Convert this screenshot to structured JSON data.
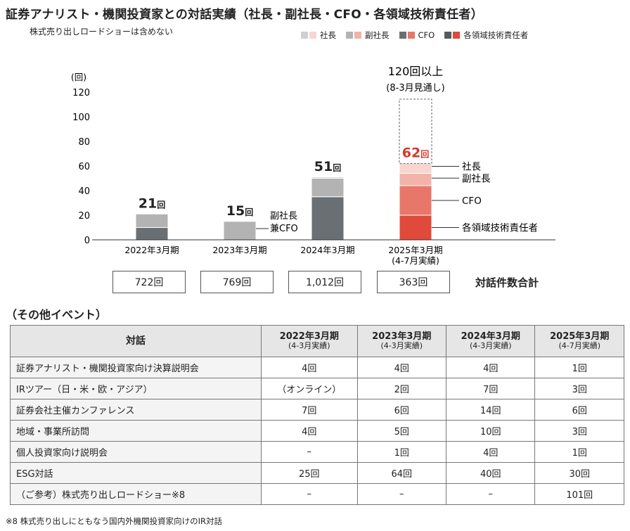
{
  "title": "証券アナリスト・機関投資家との対話実績（社長・副社長・CFO・各領域技術責任者）",
  "subtitle": "株式売り出しロードショーは含めない",
  "colors": {
    "president": "#cfcfcf",
    "vice_president": "#b3b3b3",
    "cfo": "#6a6f73",
    "tech": "#565b5f",
    "president_2025": "#f8d6cf",
    "vice_president_2025": "#f2b3a8",
    "cfo_2025": "#e8776a",
    "tech_2025": "#df4a3b",
    "highlight": "#d33a2c"
  },
  "legend": [
    {
      "label": "社長",
      "key": "president"
    },
    {
      "label": "副社長",
      "key": "vice_president"
    },
    {
      "label": "CFO",
      "key": "cfo"
    },
    {
      "label": "各領域技術責任者",
      "key": "tech"
    }
  ],
  "chart_data": {
    "type": "bar",
    "stacked": true,
    "y_unit": "(回)",
    "ylim": [
      0,
      120
    ],
    "yticks": [
      "0",
      "20",
      "40",
      "60",
      "80",
      "100",
      "120"
    ],
    "categories": [
      "2022年3月期",
      "2023年3月期",
      "2024年3月期",
      "2025年3月期"
    ],
    "category_sub": [
      "",
      "",
      "",
      "(4-7月実績)"
    ],
    "series": [
      {
        "name": "各領域技術責任者",
        "values": [
          0,
          0,
          0,
          20
        ]
      },
      {
        "name": "CFO",
        "values": [
          10,
          0,
          35,
          24
        ]
      },
      {
        "name": "副社長",
        "values": [
          11,
          15,
          15,
          10
        ]
      },
      {
        "name": "社長",
        "values": [
          0,
          0,
          1,
          8
        ]
      }
    ],
    "total_labels": [
      "21回",
      "15回",
      "51回",
      "62回"
    ],
    "bar_annotation": [
      "副社長",
      "兼CFO"
    ],
    "segment_labels": [
      "社長",
      "副社長",
      "CFO",
      "各領域技術責任者"
    ],
    "projection": {
      "value": 120,
      "label": "120回以上",
      "sublabel": "(8-3月見通し)"
    }
  },
  "totals": {
    "values": [
      "722回",
      "769回",
      "1,012回",
      "363回"
    ],
    "label": "対話件数合計"
  },
  "other_events": {
    "heading": "（その他イベント）",
    "header_label": "対話",
    "columns": [
      {
        "year": "2022年3月期",
        "sub": "(4-3月実績)"
      },
      {
        "year": "2023年3月期",
        "sub": "(4-3月実績)"
      },
      {
        "year": "2024年3月期",
        "sub": "(4-3月実績)"
      },
      {
        "year": "2025年3月期",
        "sub": "(4-7月実績)"
      }
    ],
    "rows": [
      {
        "label": "証券アナリスト・機関投資家向け決算説明会",
        "values": [
          "4回",
          "4回",
          "4回",
          "1回"
        ]
      },
      {
        "label": "IRツアー（日・米・欧・アジア）",
        "values": [
          "（オンライン）",
          "2回",
          "7回",
          "3回"
        ]
      },
      {
        "label": "証券会社主催カンファレンス",
        "values": [
          "7回",
          "6回",
          "14回",
          "6回"
        ]
      },
      {
        "label": "地域・事業所訪問",
        "values": [
          "4回",
          "5回",
          "10回",
          "3回"
        ]
      },
      {
        "label": "個人投資家向け説明会",
        "values": [
          "–",
          "1回",
          "4回",
          "1回"
        ]
      },
      {
        "label": "ESG対話",
        "values": [
          "25回",
          "64回",
          "40回",
          "30回"
        ]
      },
      {
        "label": "（ご参考）株式売り出しロードショー※8",
        "values": [
          "–",
          "–",
          "–",
          "101回"
        ]
      }
    ]
  },
  "footnote": "※8 株式売り出しにともなう国内外機関投資家向けのIR対話"
}
